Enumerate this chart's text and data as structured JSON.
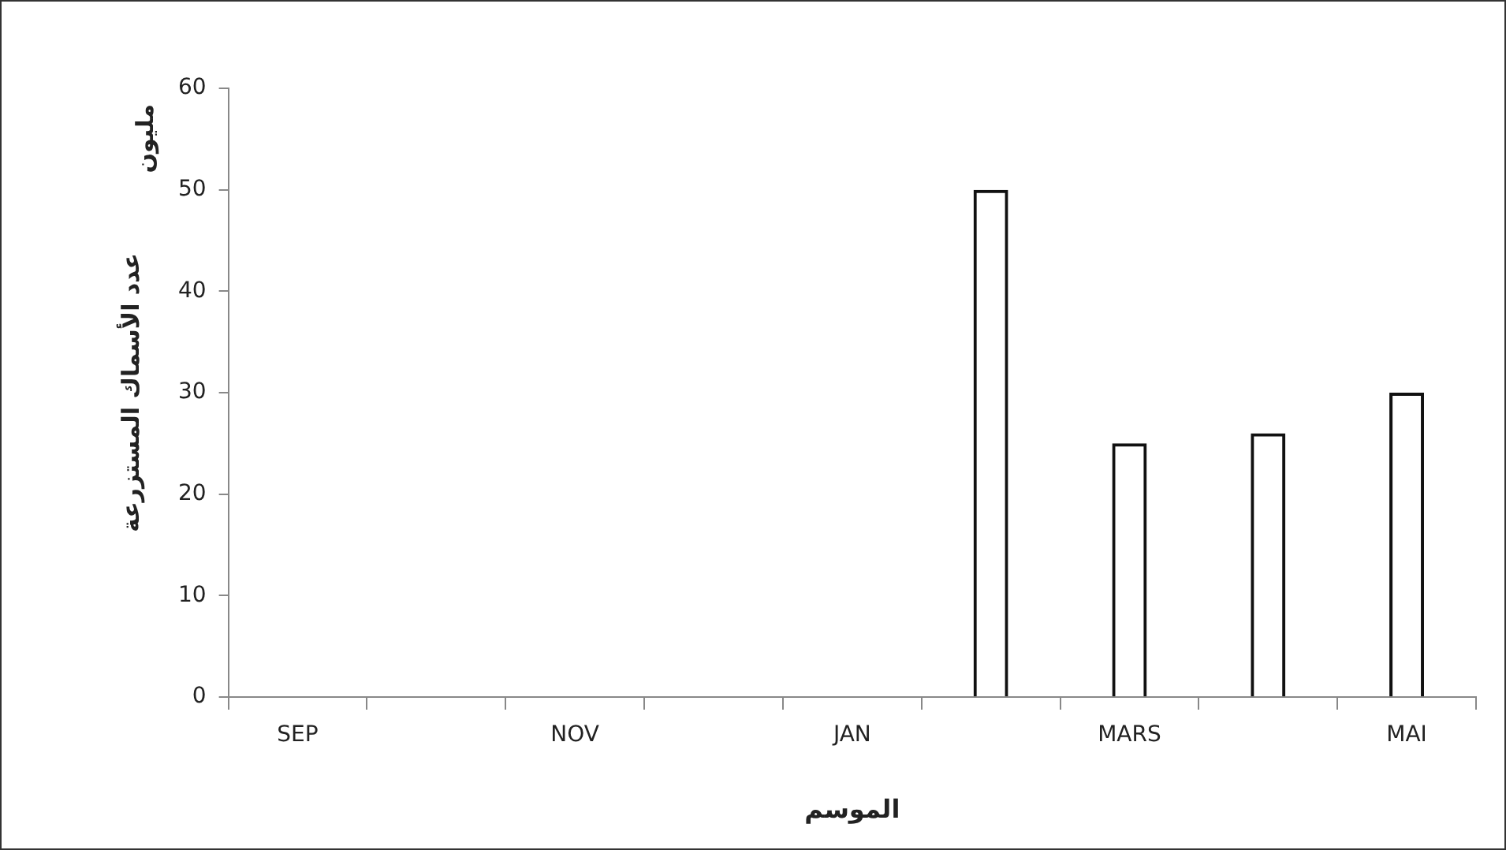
{
  "chart_data": {
    "type": "bar",
    "xlabel": "الموسم",
    "ylabel": "عدد الأسماك المستزرعة",
    "annotations": [
      "مليون"
    ],
    "categories": [
      "SEP",
      null,
      "NOV",
      null,
      "JAN",
      null,
      "MARS",
      null,
      "MAI"
    ],
    "values": [
      null,
      null,
      null,
      null,
      null,
      50,
      25,
      26,
      30
    ],
    "color": "#111111",
    "ylim": [
      0,
      60
    ],
    "yticks": [
      0,
      10,
      20,
      30,
      40,
      50,
      60
    ],
    "grid": false,
    "legend": false
  }
}
